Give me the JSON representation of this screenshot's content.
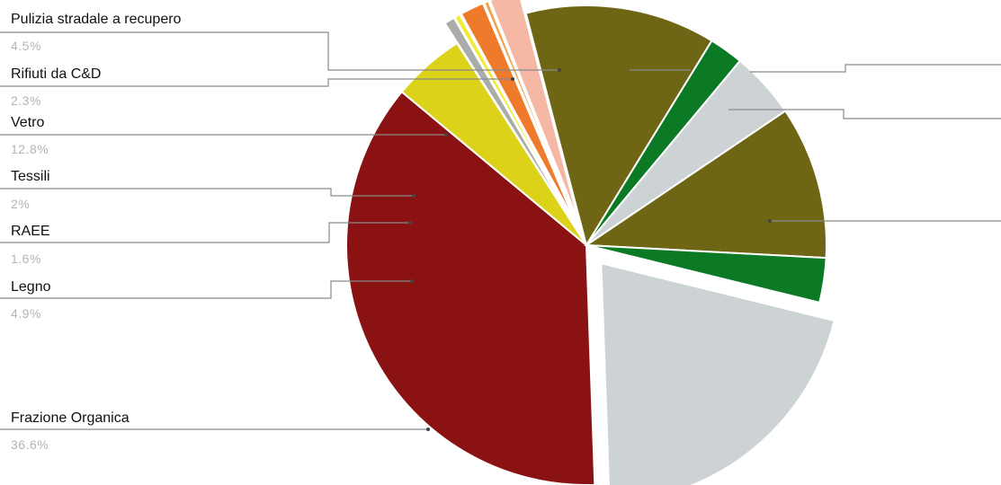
{
  "chart_data": {
    "type": "pie",
    "title": "",
    "slices": [
      {
        "label": "Frazione Organica",
        "value": 36.6,
        "value_label": "36.6%",
        "color": "#8a1212",
        "exploded": false
      },
      {
        "label": "Legno",
        "value": 4.9,
        "value_label": "4.9%",
        "color": "#dcd21a",
        "exploded": false
      },
      {
        "label": "",
        "value": 0.7,
        "value_label": "",
        "color": "#a9aca8",
        "exploded": true
      },
      {
        "label": "",
        "value": 0.4,
        "value_label": "",
        "color": "#f2ea3a",
        "exploded": true
      },
      {
        "label": "RAEE",
        "value": 1.6,
        "value_label": "1.6%",
        "color": "#f07a2c",
        "exploded": true
      },
      {
        "label": "",
        "value": 0.3,
        "value_label": "",
        "color": "#f2a24a",
        "exploded": true
      },
      {
        "label": "Tessili",
        "value": 2,
        "value_label": "2%",
        "color": "#f5b8a4",
        "exploded": true
      },
      {
        "label": "Vetro",
        "value": 12.8,
        "value_label": "12.8%",
        "color": "#6e6614",
        "exploded": false
      },
      {
        "label": "Rifiuti da C&D",
        "value": 2.3,
        "value_label": "2.3%",
        "color": "#0c7a24",
        "exploded": false
      },
      {
        "label": "Pulizia stradale a recupero",
        "value": 4.5,
        "value_label": "4.5%",
        "color": "#cdd2d4",
        "exploded": false
      },
      {
        "label": "",
        "value": 10.3,
        "value_label": "",
        "color": "#6e6614",
        "exploded": false
      },
      {
        "label": "",
        "value": 3.0,
        "value_label": "",
        "color": "#0c7a24",
        "exploded": false
      },
      {
        "label": "",
        "value": 20.6,
        "value_label": "",
        "color": "#cdd2d4",
        "exploded": true
      }
    ],
    "legend_placement": "left",
    "start_angle": "top, clockwise"
  }
}
